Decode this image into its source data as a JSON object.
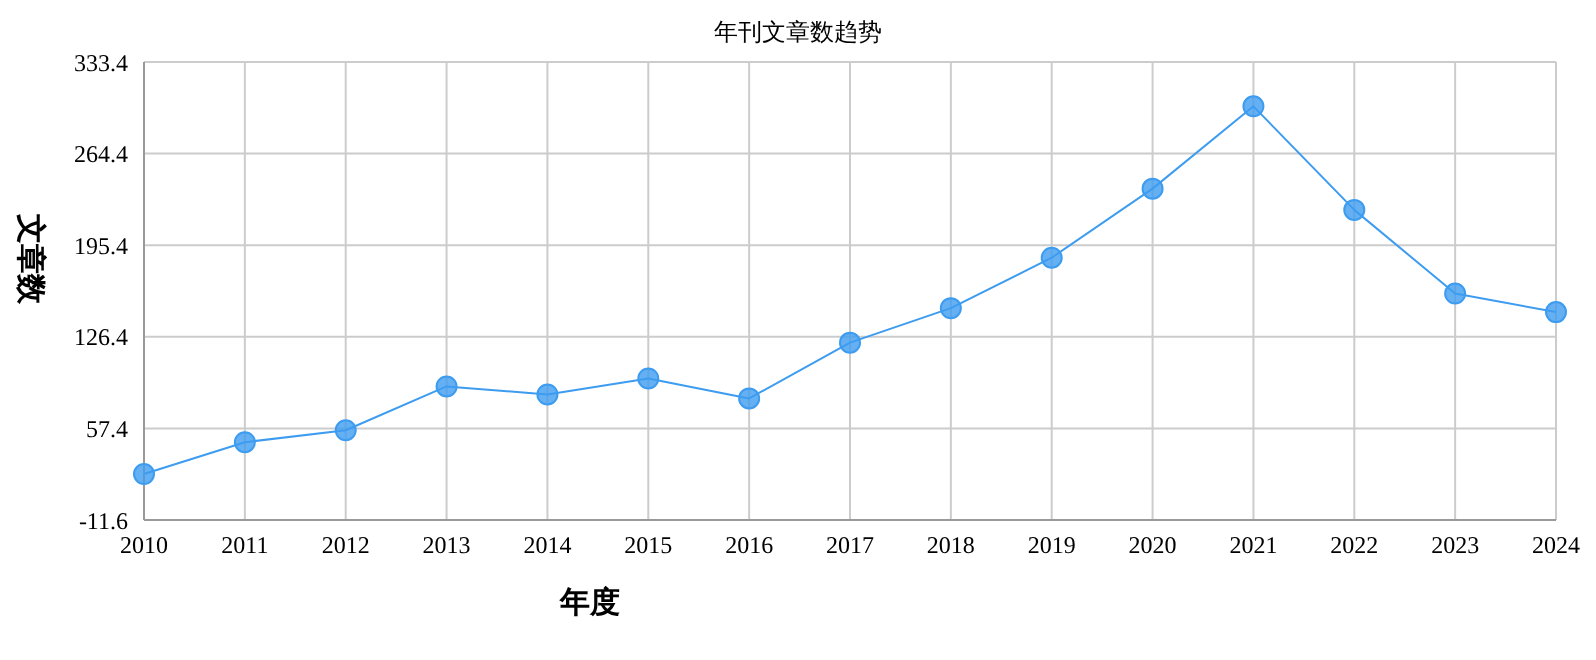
{
  "chart_data": {
    "type": "line",
    "title": "年刊文章数趋势",
    "xlabel": "年度",
    "ylabel": "文章数",
    "categories": [
      "2010",
      "2011",
      "2012",
      "2013",
      "2014",
      "2015",
      "2016",
      "2017",
      "2018",
      "2019",
      "2020",
      "2021",
      "2022",
      "2023",
      "2024"
    ],
    "series": [
      {
        "color": "#3d9cf0",
        "values": [
          23,
          47,
          56,
          89,
          83,
          95,
          80,
          122,
          148,
          186,
          238,
          300,
          222,
          159,
          145
        ]
      }
    ],
    "ylim": [
      -11.6,
      333.4
    ],
    "yticks": [
      -11.6,
      57.4,
      126.4,
      195.4,
      264.4,
      333.4
    ],
    "grid": true,
    "marker": "circle",
    "line_style": "solid"
  }
}
